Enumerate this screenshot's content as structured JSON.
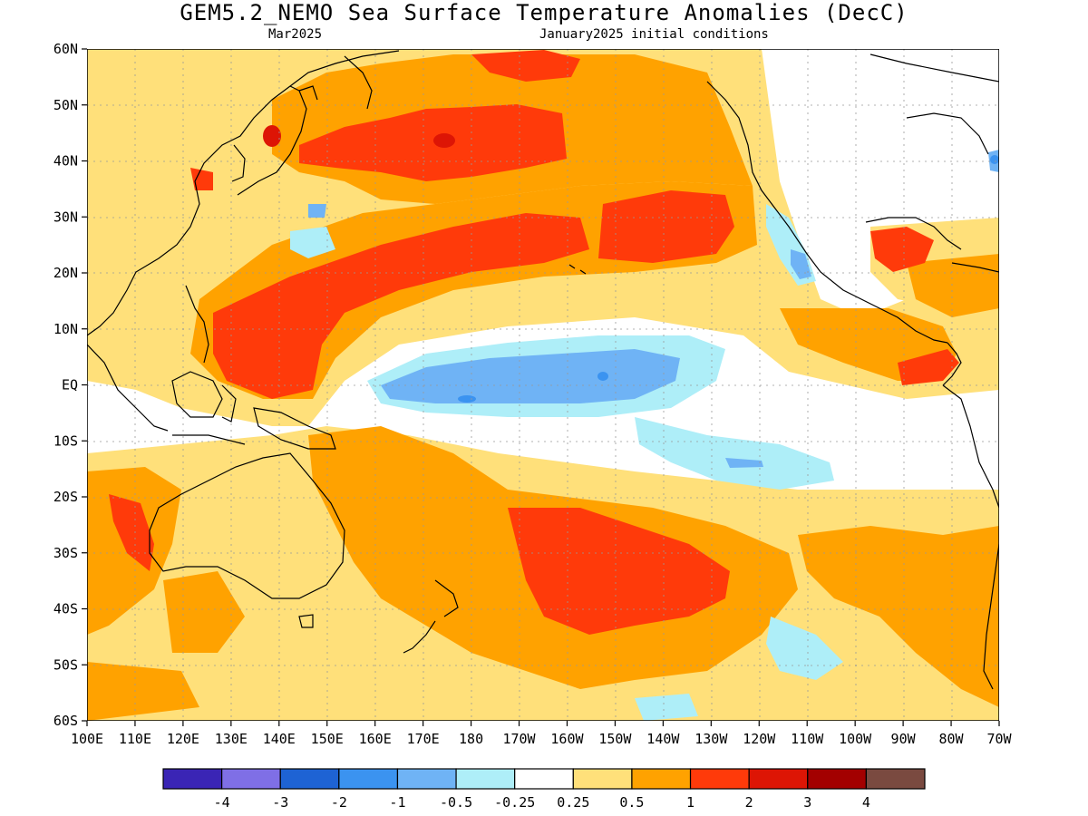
{
  "title": "GEM5.2_NEMO Sea Surface Temperature Anomalies (DecC)",
  "subtitle_left": "Mar2025",
  "subtitle_right": "January2025 initial conditions",
  "lat_labels": [
    "60N",
    "50N",
    "40N",
    "30N",
    "20N",
    "10N",
    "EQ",
    "10S",
    "20S",
    "30S",
    "40S",
    "50S",
    "60S"
  ],
  "lon_labels": [
    "100E",
    "110E",
    "120E",
    "130E",
    "140E",
    "150E",
    "160E",
    "170E",
    "180",
    "170W",
    "160W",
    "150W",
    "140W",
    "130W",
    "120W",
    "110W",
    "100W",
    "90W",
    "80W",
    "70W"
  ],
  "colorbar": {
    "colors": [
      "#3a25b5",
      "#7f6fe6",
      "#1e63d4",
      "#3b93f0",
      "#6fb3f5",
      "#aeeef8",
      "#ffffff",
      "#ffe07a",
      "#ffa200",
      "#ff3a0a",
      "#dd1505",
      "#a30000",
      "#7a4a40"
    ],
    "labels": [
      "-4",
      "-3",
      "-2",
      "-1",
      "-0.5",
      "-0.25",
      "0.25",
      "0.5",
      "1",
      "2",
      "3",
      "4"
    ]
  }
}
